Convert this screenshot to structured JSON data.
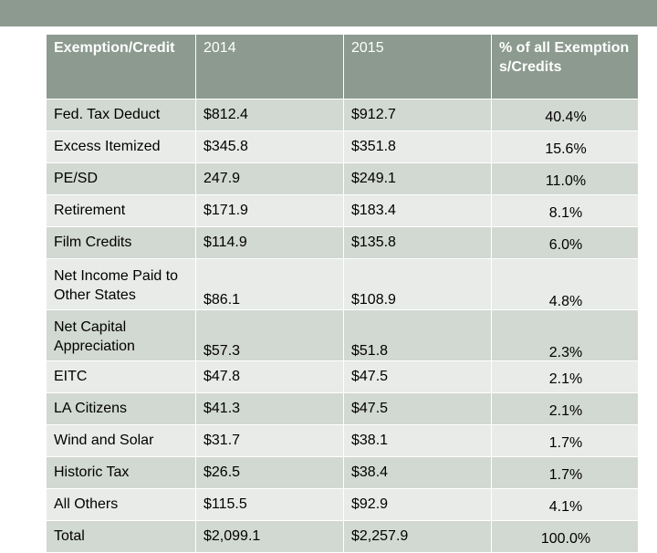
{
  "table": {
    "headers": [
      "Exemption/Credit",
      "2014",
      "2015",
      "% of all Exemptions/Credits"
    ],
    "rows": [
      [
        "Fed. Tax Deduct",
        "$812.4",
        "$912.7",
        "40.4%"
      ],
      [
        "Excess Itemized",
        "$345.8",
        "$351.8",
        "15.6%"
      ],
      [
        "PE/SD",
        "247.9",
        "$249.1",
        "11.0%"
      ],
      [
        "Retirement",
        "$171.9",
        "$183.4",
        "8.1%"
      ],
      [
        "Film Credits",
        "$114.9",
        "$135.8",
        "6.0%"
      ],
      [
        "Net Income Paid to Other States",
        "$86.1",
        "$108.9",
        "4.8%"
      ],
      [
        "Net Capital Appreciation",
        "$57.3",
        "$51.8",
        "2.3%"
      ],
      [
        "EITC",
        "$47.8",
        "$47.5",
        "2.1%"
      ],
      [
        "LA Citizens",
        "$41.3",
        "$47.5",
        "2.1%"
      ],
      [
        "Wind and Solar",
        "$31.7",
        "$38.1",
        "1.7%"
      ],
      [
        "Historic Tax",
        "$26.5",
        "$38.4",
        "1.7%"
      ],
      [
        "All Others",
        "$115.5",
        "$92.9",
        "4.1%"
      ],
      [
        "Total",
        "$2,099.1",
        "$2,257.9",
        "100.0%"
      ]
    ]
  },
  "colors": {
    "header_bg": "#8c9a8f",
    "row_dark": "#d2d8d2",
    "row_light": "#e8ebe8"
  }
}
